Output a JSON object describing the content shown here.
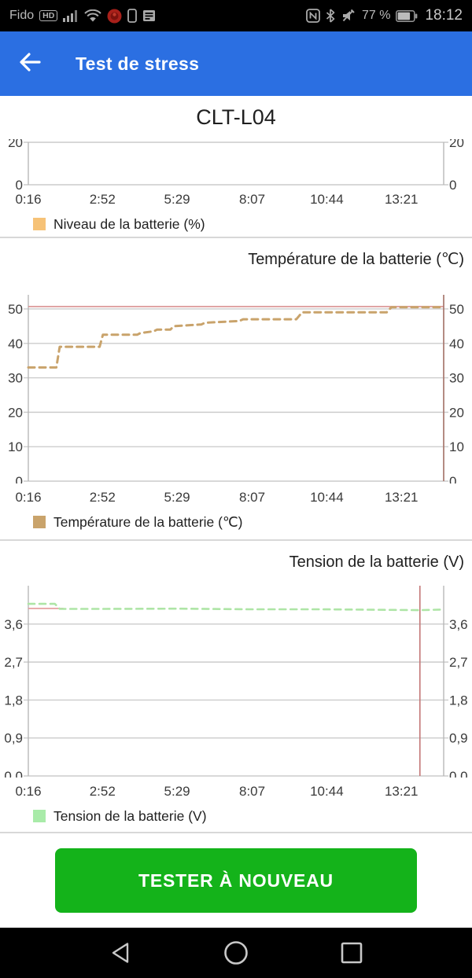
{
  "status_bar": {
    "carrier": "Fido",
    "hd_badge": "HD",
    "battery_percent": "77 %",
    "time": "18:12",
    "left_icons": [
      "signal-bars",
      "wifi",
      "app-badge",
      "phone",
      "sim-toolkit"
    ],
    "right_icons": [
      "nfc",
      "bluetooth",
      "mute",
      "battery"
    ]
  },
  "header": {
    "title": "Test de stress",
    "back_icon": "arrow-left"
  },
  "ui_colors": {
    "header_blue": "#2b6fe2",
    "button_green": "#14b31a",
    "grid": "#cccccc",
    "axis": "#b8b8b8",
    "tick_text": "#3a3a3a"
  },
  "chart_data": [
    {
      "type": "line",
      "title": "CLT-L04",
      "title_align": "center",
      "xlim": [
        "0:16",
        "14:50"
      ],
      "x_ticks": [
        "0:16",
        "2:52",
        "5:29",
        "8:07",
        "10:44",
        "13:21"
      ],
      "ylim": [
        0,
        20
      ],
      "y_ticks": [
        0,
        20
      ],
      "series": [
        {
          "name": "Niveau de la batterie (%)",
          "color": "#f6c277",
          "width": 3,
          "dash": "8 6",
          "points": []
        }
      ],
      "markers": [],
      "legend": {
        "label": "Niveau de la batterie (%)",
        "color": "#f6c277"
      }
    },
    {
      "type": "line",
      "title": "Température de la batterie (℃)",
      "title_align": "right",
      "xlim": [
        "0:16",
        "14:50"
      ],
      "x_ticks": [
        "0:16",
        "2:52",
        "5:29",
        "8:07",
        "10:44",
        "13:21"
      ],
      "ylim": [
        0,
        54.1
      ],
      "y_ticks": [
        0,
        10,
        20,
        30,
        40,
        50
      ],
      "series": [
        {
          "name": "Température de la batterie (℃)",
          "color": "#c9a36b",
          "width": 3,
          "dash": "8 6",
          "points": [
            [
              "0:16",
              33
            ],
            [
              "1:15",
              33
            ],
            [
              "1:22",
              39
            ],
            [
              "2:46",
              39
            ],
            [
              "2:53",
              42.5
            ],
            [
              "4:05",
              42.5
            ],
            [
              "4:12",
              43
            ],
            [
              "4:40",
              43.5
            ],
            [
              "4:47",
              44
            ],
            [
              "5:15",
              44
            ],
            [
              "5:22",
              45
            ],
            [
              "6:20",
              45.5
            ],
            [
              "6:28",
              46
            ],
            [
              "7:40",
              46.5
            ],
            [
              "7:48",
              47
            ],
            [
              "9:40",
              47
            ],
            [
              "9:52",
              49
            ],
            [
              "12:50",
              49
            ],
            [
              "13:00",
              50.5
            ],
            [
              "14:50",
              50.5
            ]
          ]
        }
      ],
      "markers": [
        {
          "type": "hline",
          "value": 50.7,
          "color": "#da9191"
        },
        {
          "type": "vline",
          "time": "14:50",
          "color": "#a8766c"
        }
      ],
      "legend": {
        "label": "Température de la batterie (℃)",
        "color": "#c9a36b"
      }
    },
    {
      "type": "line",
      "title": "Tension de la batterie (V)",
      "title_align": "right",
      "xlim": [
        "0:16",
        "14:50"
      ],
      "x_ticks": [
        "0:16",
        "2:52",
        "5:29",
        "8:07",
        "10:44",
        "13:21"
      ],
      "ylim": [
        0,
        4.51
      ],
      "y_ticks": [
        0,
        0.9,
        1.8,
        2.7,
        3.6
      ],
      "y_tick_labels": [
        "0,0",
        "0,9",
        "1,8",
        "2,7",
        "3,6"
      ],
      "series": [
        {
          "name": "Tension de la batterie (V)",
          "color": "#aee5a6",
          "width": 2.6,
          "dash": "8 6",
          "points": [
            [
              "0:16",
              4.08
            ],
            [
              "1:12",
              4.08
            ],
            [
              "1:22",
              3.96
            ],
            [
              "3:00",
              3.96
            ],
            [
              "5:30",
              3.965
            ],
            [
              "8:00",
              3.95
            ],
            [
              "10:30",
              3.95
            ],
            [
              "12:30",
              3.94
            ],
            [
              "14:00",
              3.93
            ],
            [
              "14:50",
              3.945
            ]
          ]
        }
      ],
      "markers": [
        {
          "type": "hline",
          "value": 3.97,
          "from": "0:16",
          "to": "1:30",
          "color": "#e39a9a"
        },
        {
          "type": "vline",
          "time": "14:00",
          "color": "#c47878"
        }
      ],
      "legend": {
        "label": "Tension de la batterie (V)",
        "color": "#a9eba9"
      }
    }
  ],
  "button": {
    "label": "TESTER À NOUVEAU"
  },
  "nav_bar": {
    "icons": [
      "back",
      "home",
      "recents"
    ]
  }
}
